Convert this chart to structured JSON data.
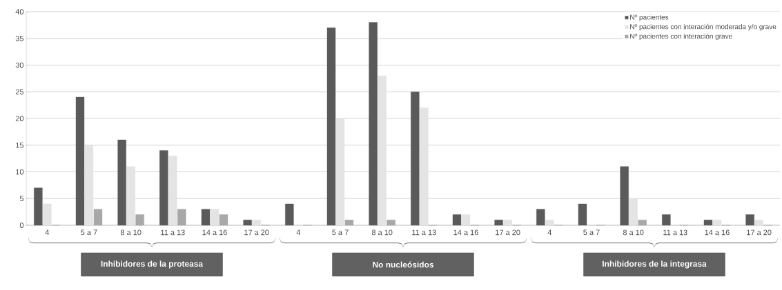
{
  "chart_data": {
    "type": "bar",
    "categories": [
      "4",
      "5 a 7",
      "8 a 10",
      "11 a 13",
      "14 a 16",
      "17 a 20",
      "4",
      "5 a 7",
      "8 a 10",
      "11 a 13",
      "14 a 16",
      "17 a 20",
      "4",
      "5 a 7",
      "8 a 10",
      "11 a 13",
      "14 a 16",
      "17 a 20"
    ],
    "series": [
      {
        "name": "Nº pacientes",
        "color": "#5a5a5a",
        "values": [
          7,
          24,
          16,
          14,
          3,
          1,
          4,
          37,
          38,
          25,
          2,
          1,
          3,
          4,
          11,
          2,
          1,
          2
        ]
      },
      {
        "name": "Nº pacientes con interación moderada y/o grave",
        "color": "#e4e4e4",
        "values": [
          4,
          15,
          11,
          13,
          3,
          1,
          0,
          20,
          28,
          22,
          2,
          1,
          1,
          0,
          5,
          0,
          1,
          1
        ]
      },
      {
        "name": "Nº pacientes con interación grave",
        "color": "#a8a8a8",
        "values": [
          0,
          3,
          2,
          3,
          2,
          0,
          0,
          1,
          1,
          0,
          0,
          0,
          0,
          0,
          1,
          0,
          0,
          0
        ]
      }
    ],
    "ylim": [
      0,
      40
    ],
    "yticks": [
      0,
      5,
      10,
      15,
      20,
      25,
      30,
      35,
      40
    ],
    "grid": "y",
    "legend": "top right",
    "annotations": [
      "Inhibidores de la proteasa",
      "No nucleósidos",
      "Inhibidores de la integrasa"
    ]
  }
}
